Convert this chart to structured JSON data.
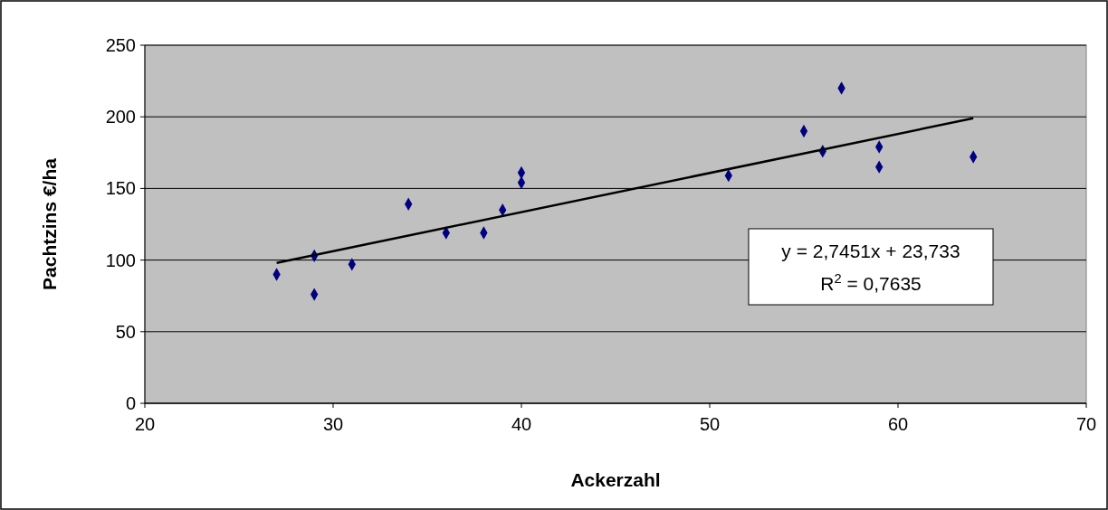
{
  "chart_data": {
    "type": "scatter",
    "xlabel": "Ackerzahl",
    "ylabel": "Pachtzins €/ha",
    "xlim": [
      20,
      70
    ],
    "xticks": [
      20,
      30,
      40,
      50,
      60,
      70
    ],
    "ylim": [
      0,
      250
    ],
    "yticks": [
      0,
      50,
      100,
      150,
      200,
      250
    ],
    "grid": "y",
    "marker": "diamond",
    "series": [
      {
        "color": "#000080",
        "x": [
          27,
          29,
          29,
          31,
          34,
          36,
          38,
          39,
          40,
          40,
          51,
          55,
          56,
          57,
          59,
          59,
          64
        ],
        "values": [
          90,
          103,
          76,
          97,
          139,
          119,
          119,
          135,
          161,
          154,
          159,
          190,
          176,
          220,
          179,
          165,
          172
        ]
      },
      {
        "type": "line",
        "color": "#000000",
        "marker": "none",
        "x": [
          27,
          64
        ],
        "values": [
          98,
          199
        ]
      }
    ],
    "annotations": [
      "y = 2,7451x + 23,733",
      "R$^{2}$ = 0,7635"
    ]
  }
}
